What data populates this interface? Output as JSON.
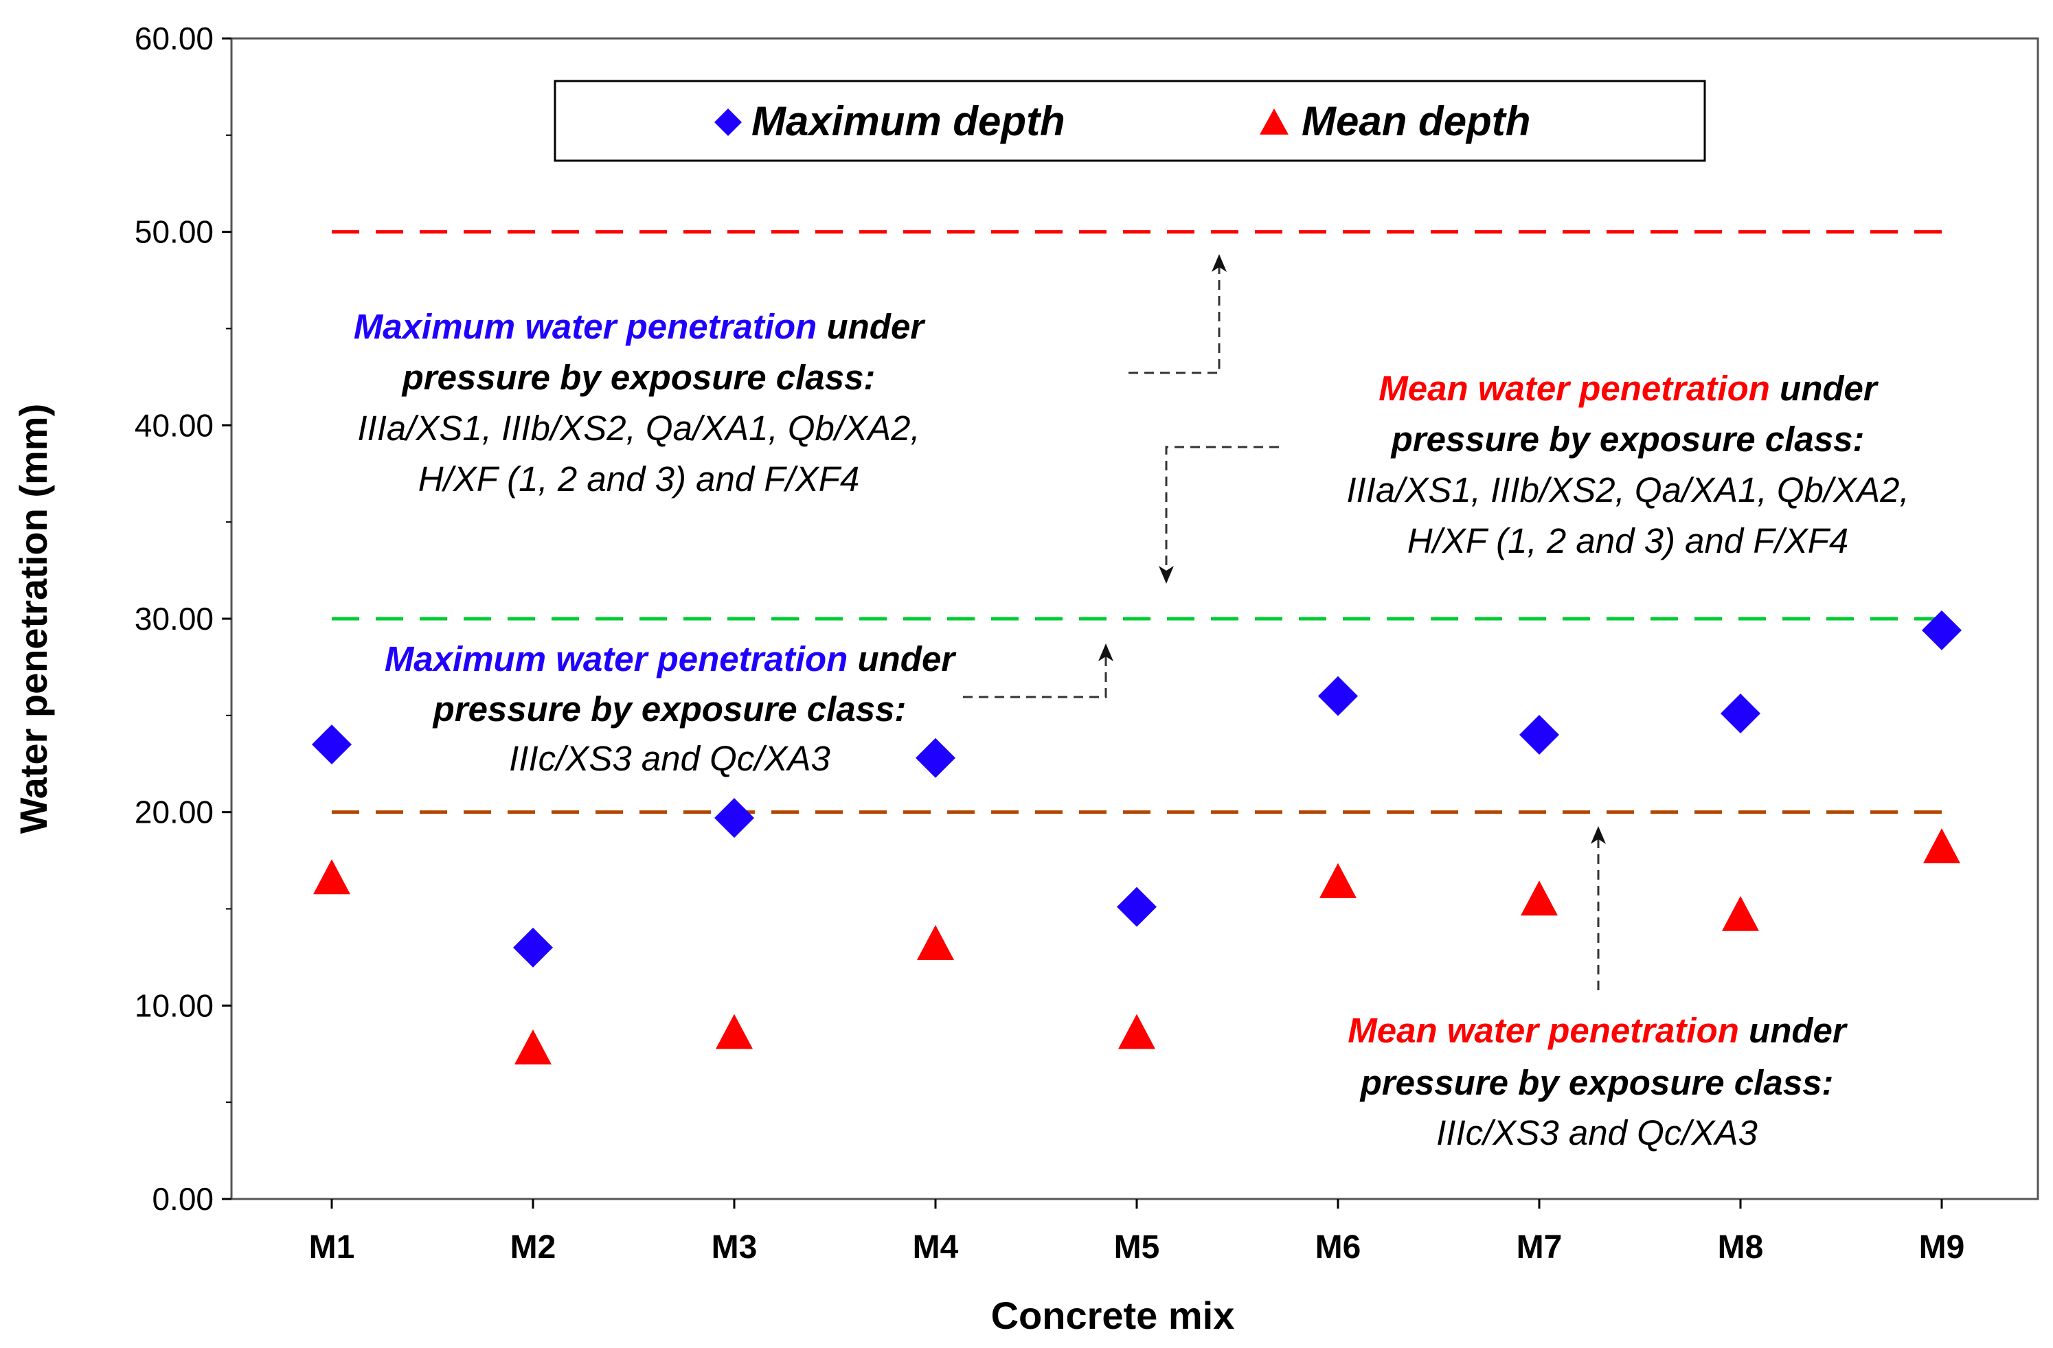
{
  "chart_data": {
    "type": "scatter",
    "title": "",
    "xlabel": "Concrete mix",
    "ylabel": "Water penetration (mm)",
    "categories": [
      "M1",
      "M2",
      "M3",
      "M4",
      "M5",
      "M6",
      "M7",
      "M8",
      "M9"
    ],
    "ylim": [
      0,
      60
    ],
    "yticks": [
      "0.00",
      "10.00",
      "20.00",
      "30.00",
      "40.00",
      "50.00",
      "60.00"
    ],
    "grid": false,
    "legend_position": "top-center",
    "series": [
      {
        "name": "Maximum depth",
        "marker": "diamond",
        "color": "#1f00ff",
        "values": [
          23.5,
          13.0,
          19.7,
          22.8,
          15.1,
          26.0,
          24.0,
          25.1,
          29.4
        ]
      },
      {
        "name": "Mean depth",
        "marker": "triangle",
        "color": "#ff0000",
        "values": [
          16.5,
          7.7,
          8.5,
          13.1,
          8.5,
          16.3,
          15.4,
          14.6,
          18.1
        ]
      }
    ],
    "reference_lines": [
      {
        "y": 50,
        "color": "#ff0000"
      },
      {
        "y": 30,
        "color": "#00cc33"
      },
      {
        "y": 20,
        "color": "#b34700"
      }
    ],
    "annotations": [
      {
        "id": "a1",
        "colored": "Maximum water penetration",
        "colored_color": "#1f00ff",
        "rest": " under",
        "line2": "pressure by exposure class:",
        "lines": [
          "IIIa/XS1,  IIIb/XS2, Qa/XA1, Qb/XA2,",
          "H/XF (1, 2 and 3) and F/XF4"
        ]
      },
      {
        "id": "a2",
        "colored": "Mean water penetration",
        "colored_color": "#ff0000",
        "rest": " under",
        "line2": "pressure by exposure class:",
        "lines": [
          "IIIa/XS1,  IIIb/XS2, Qa/XA1, Qb/XA2,",
          "H/XF (1, 2 and 3) and F/XF4"
        ]
      },
      {
        "id": "a3",
        "colored": "Maximum water penetration",
        "colored_color": "#1f00ff",
        "rest": " under",
        "line2": "pressure by exposure class:",
        "lines": [
          "IIIc/XS3 and Qc/XA3"
        ]
      },
      {
        "id": "a4",
        "colored": "Mean water penetration",
        "colored_color": "#ff0000",
        "rest": " under",
        "line2": "pressure by exposure class:",
        "lines": [
          "IIIc/XS3 and Qc/XA3"
        ]
      }
    ]
  }
}
